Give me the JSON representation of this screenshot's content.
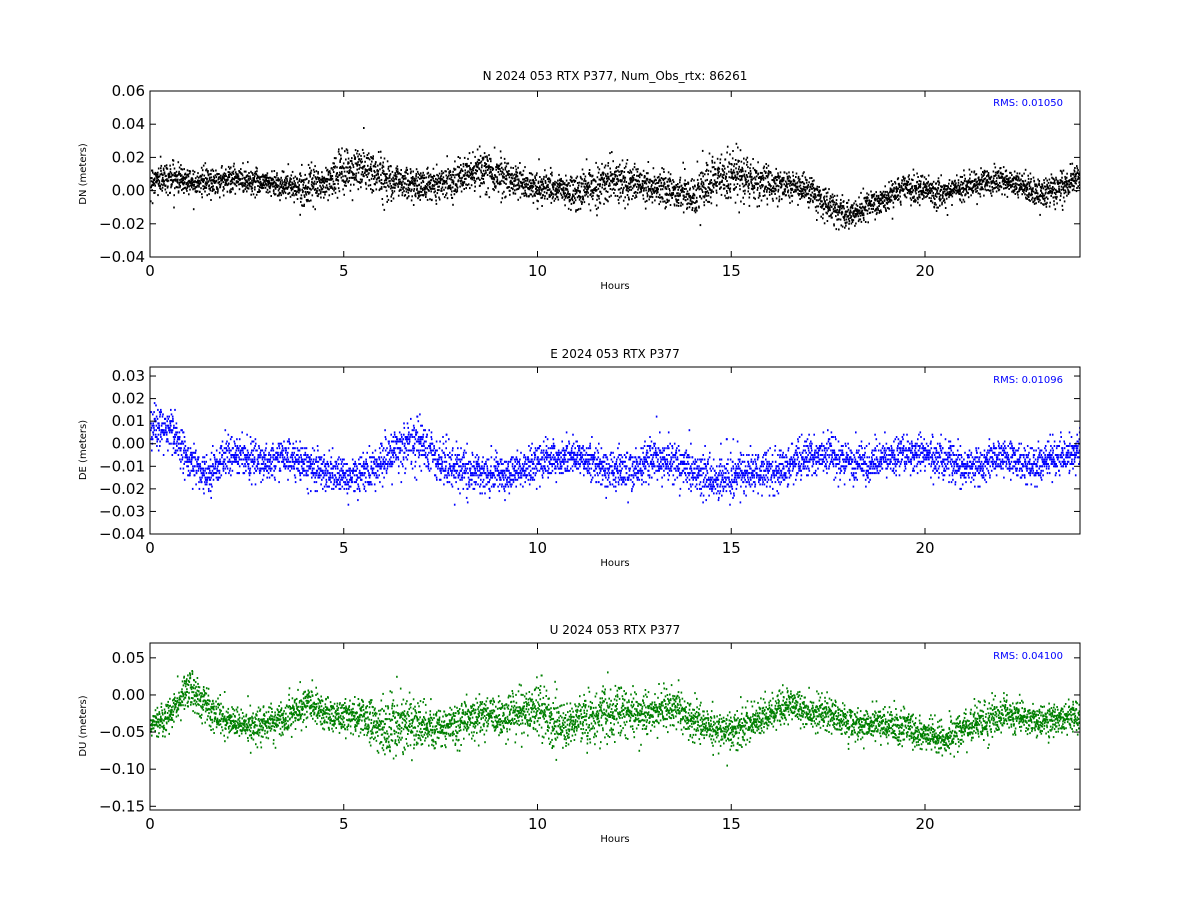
{
  "chart_data": [
    {
      "type": "scatter",
      "title": "N 2024 053 RTX  P377, Num_Obs_rtx: 86261",
      "xlabel": "Hours",
      "ylabel": "DN (meters)",
      "xlim": [
        0,
        24
      ],
      "ylim": [
        -0.04,
        0.06
      ],
      "xticks": [
        "0",
        "5",
        "10",
        "15",
        "20"
      ],
      "yticks": [
        "−0.04",
        "−0.02",
        "0.00",
        "0.02",
        "0.04",
        "0.06"
      ],
      "annotation": "RMS:  0.01050",
      "series": [
        {
          "color": "#000000",
          "trend": {
            "x": [
              0,
              0.5,
              1,
              1.5,
              2,
              2.5,
              3,
              3.5,
              4,
              4.5,
              5,
              5.5,
              6,
              6.5,
              7,
              7.5,
              8,
              8.5,
              9,
              9.5,
              10,
              10.5,
              11,
              11.5,
              12,
              12.5,
              13,
              13.5,
              14,
              14.5,
              15,
              15.5,
              16,
              16.5,
              17,
              17.5,
              18,
              18.5,
              19,
              19.5,
              20,
              20.5,
              21,
              21.5,
              22,
              22.5,
              23,
              23.5,
              24
            ],
            "y": [
              0.006,
              0.008,
              0.006,
              0.005,
              0.007,
              0.006,
              0.005,
              0.003,
              0.002,
              0.004,
              0.012,
              0.013,
              0.008,
              0.005,
              0.003,
              0.005,
              0.008,
              0.012,
              0.01,
              0.005,
              0.002,
              0.001,
              -0.002,
              0.004,
              0.006,
              0.004,
              0.002,
              0.0,
              -0.003,
              0.004,
              0.01,
              0.006,
              0.004,
              0.003,
              0.0,
              -0.01,
              -0.015,
              -0.01,
              -0.005,
              0.002,
              0.0,
              -0.002,
              0.003,
              0.006,
              0.005,
              0.002,
              -0.002,
              0.002,
              0.008
            ],
            "spread": [
              0.01,
              0.01,
              0.009,
              0.009,
              0.009,
              0.009,
              0.008,
              0.009,
              0.01,
              0.011,
              0.015,
              0.016,
              0.014,
              0.011,
              0.01,
              0.01,
              0.011,
              0.013,
              0.013,
              0.011,
              0.01,
              0.01,
              0.012,
              0.016,
              0.013,
              0.011,
              0.012,
              0.012,
              0.013,
              0.016,
              0.017,
              0.014,
              0.011,
              0.01,
              0.01,
              0.01,
              0.01,
              0.009,
              0.009,
              0.009,
              0.009,
              0.009,
              0.009,
              0.009,
              0.009,
              0.009,
              0.01,
              0.01,
              0.01
            ]
          }
        }
      ]
    },
    {
      "type": "scatter",
      "title": "E 2024 053 RTX  P377",
      "xlabel": "Hours",
      "ylabel": "DE (meters)",
      "xlim": [
        0,
        24
      ],
      "ylim": [
        -0.04,
        0.034
      ],
      "xticks": [
        "0",
        "5",
        "10",
        "15",
        "20"
      ],
      "yticks": [
        "−0.04",
        "−0.03",
        "−0.02",
        "−0.01",
        "0.00",
        "0.01",
        "0.02",
        "0.03"
      ],
      "annotation": "RMS:  0.01096",
      "series": [
        {
          "color": "#0000ff",
          "trend": {
            "x": [
              0,
              0.5,
              1,
              1.5,
              2,
              2.5,
              3,
              3.5,
              4,
              4.5,
              5,
              5.5,
              6,
              6.5,
              7,
              7.5,
              8,
              8.5,
              9,
              9.5,
              10,
              10.5,
              11,
              11.5,
              12,
              12.5,
              13,
              13.5,
              14,
              14.5,
              15,
              15.5,
              16,
              16.5,
              17,
              17.5,
              18,
              18.5,
              19,
              19.5,
              20,
              20.5,
              21,
              21.5,
              22,
              22.5,
              23,
              23.5,
              24
            ],
            "y": [
              0.006,
              0.007,
              -0.008,
              -0.014,
              -0.004,
              -0.006,
              -0.008,
              -0.006,
              -0.009,
              -0.012,
              -0.015,
              -0.012,
              -0.008,
              0.0,
              0.0,
              -0.008,
              -0.012,
              -0.013,
              -0.014,
              -0.012,
              -0.008,
              -0.007,
              -0.006,
              -0.009,
              -0.012,
              -0.011,
              -0.006,
              -0.008,
              -0.012,
              -0.016,
              -0.014,
              -0.012,
              -0.013,
              -0.01,
              -0.006,
              -0.005,
              -0.008,
              -0.009,
              -0.006,
              -0.004,
              -0.004,
              -0.007,
              -0.01,
              -0.009,
              -0.006,
              -0.008,
              -0.009,
              -0.006,
              -0.003
            ],
            "spread": [
              0.009,
              0.009,
              0.01,
              0.01,
              0.009,
              0.009,
              0.008,
              0.008,
              0.009,
              0.009,
              0.009,
              0.009,
              0.01,
              0.013,
              0.012,
              0.011,
              0.01,
              0.01,
              0.009,
              0.009,
              0.009,
              0.009,
              0.009,
              0.009,
              0.009,
              0.01,
              0.011,
              0.01,
              0.01,
              0.012,
              0.011,
              0.009,
              0.009,
              0.009,
              0.009,
              0.009,
              0.009,
              0.009,
              0.009,
              0.009,
              0.009,
              0.009,
              0.009,
              0.009,
              0.009,
              0.009,
              0.009,
              0.009,
              0.009
            ]
          }
        }
      ]
    },
    {
      "type": "scatter",
      "title": "U 2024 053 RTX  P377",
      "xlabel": "Hours",
      "ylabel": "DU (meters)",
      "xlim": [
        0,
        24
      ],
      "ylim": [
        -0.155,
        0.07
      ],
      "xticks": [
        "0",
        "5",
        "10",
        "15",
        "20"
      ],
      "yticks": [
        "−0.15",
        "−0.10",
        "−0.05",
        "0.00",
        "0.05"
      ],
      "annotation": "RMS:  0.04100",
      "series": [
        {
          "color": "#008000",
          "trend": {
            "x": [
              0,
              0.5,
              1,
              1.5,
              2,
              2.5,
              3,
              3.5,
              4,
              4.5,
              5,
              5.5,
              6,
              6.5,
              7,
              7.5,
              8,
              8.5,
              9,
              9.5,
              10,
              10.5,
              11,
              11.5,
              12,
              12.5,
              13,
              13.5,
              14,
              14.5,
              15,
              15.5,
              16,
              16.5,
              17,
              17.5,
              18,
              18.5,
              19,
              19.5,
              20,
              20.5,
              21,
              21.5,
              22,
              22.5,
              23,
              23.5,
              24
            ],
            "y": [
              -0.04,
              -0.025,
              0.01,
              -0.02,
              -0.035,
              -0.045,
              -0.04,
              -0.03,
              -0.01,
              -0.025,
              -0.03,
              -0.03,
              -0.045,
              -0.04,
              -0.04,
              -0.045,
              -0.035,
              -0.03,
              -0.03,
              -0.025,
              -0.02,
              -0.04,
              -0.04,
              -0.03,
              -0.015,
              -0.025,
              -0.025,
              -0.015,
              -0.035,
              -0.045,
              -0.05,
              -0.035,
              -0.025,
              -0.015,
              -0.025,
              -0.025,
              -0.04,
              -0.04,
              -0.04,
              -0.045,
              -0.055,
              -0.06,
              -0.045,
              -0.035,
              -0.025,
              -0.03,
              -0.035,
              -0.035,
              -0.03
            ],
            "spread": [
              0.025,
              0.025,
              0.03,
              0.025,
              0.025,
              0.025,
              0.025,
              0.025,
              0.025,
              0.025,
              0.025,
              0.03,
              0.045,
              0.045,
              0.035,
              0.03,
              0.03,
              0.03,
              0.03,
              0.035,
              0.04,
              0.035,
              0.035,
              0.045,
              0.035,
              0.03,
              0.03,
              0.03,
              0.03,
              0.03,
              0.03,
              0.025,
              0.025,
              0.025,
              0.025,
              0.025,
              0.025,
              0.025,
              0.025,
              0.025,
              0.025,
              0.025,
              0.025,
              0.03,
              0.03,
              0.025,
              0.025,
              0.025,
              0.025
            ]
          }
        }
      ]
    }
  ],
  "annotation_color": "#0000ff"
}
